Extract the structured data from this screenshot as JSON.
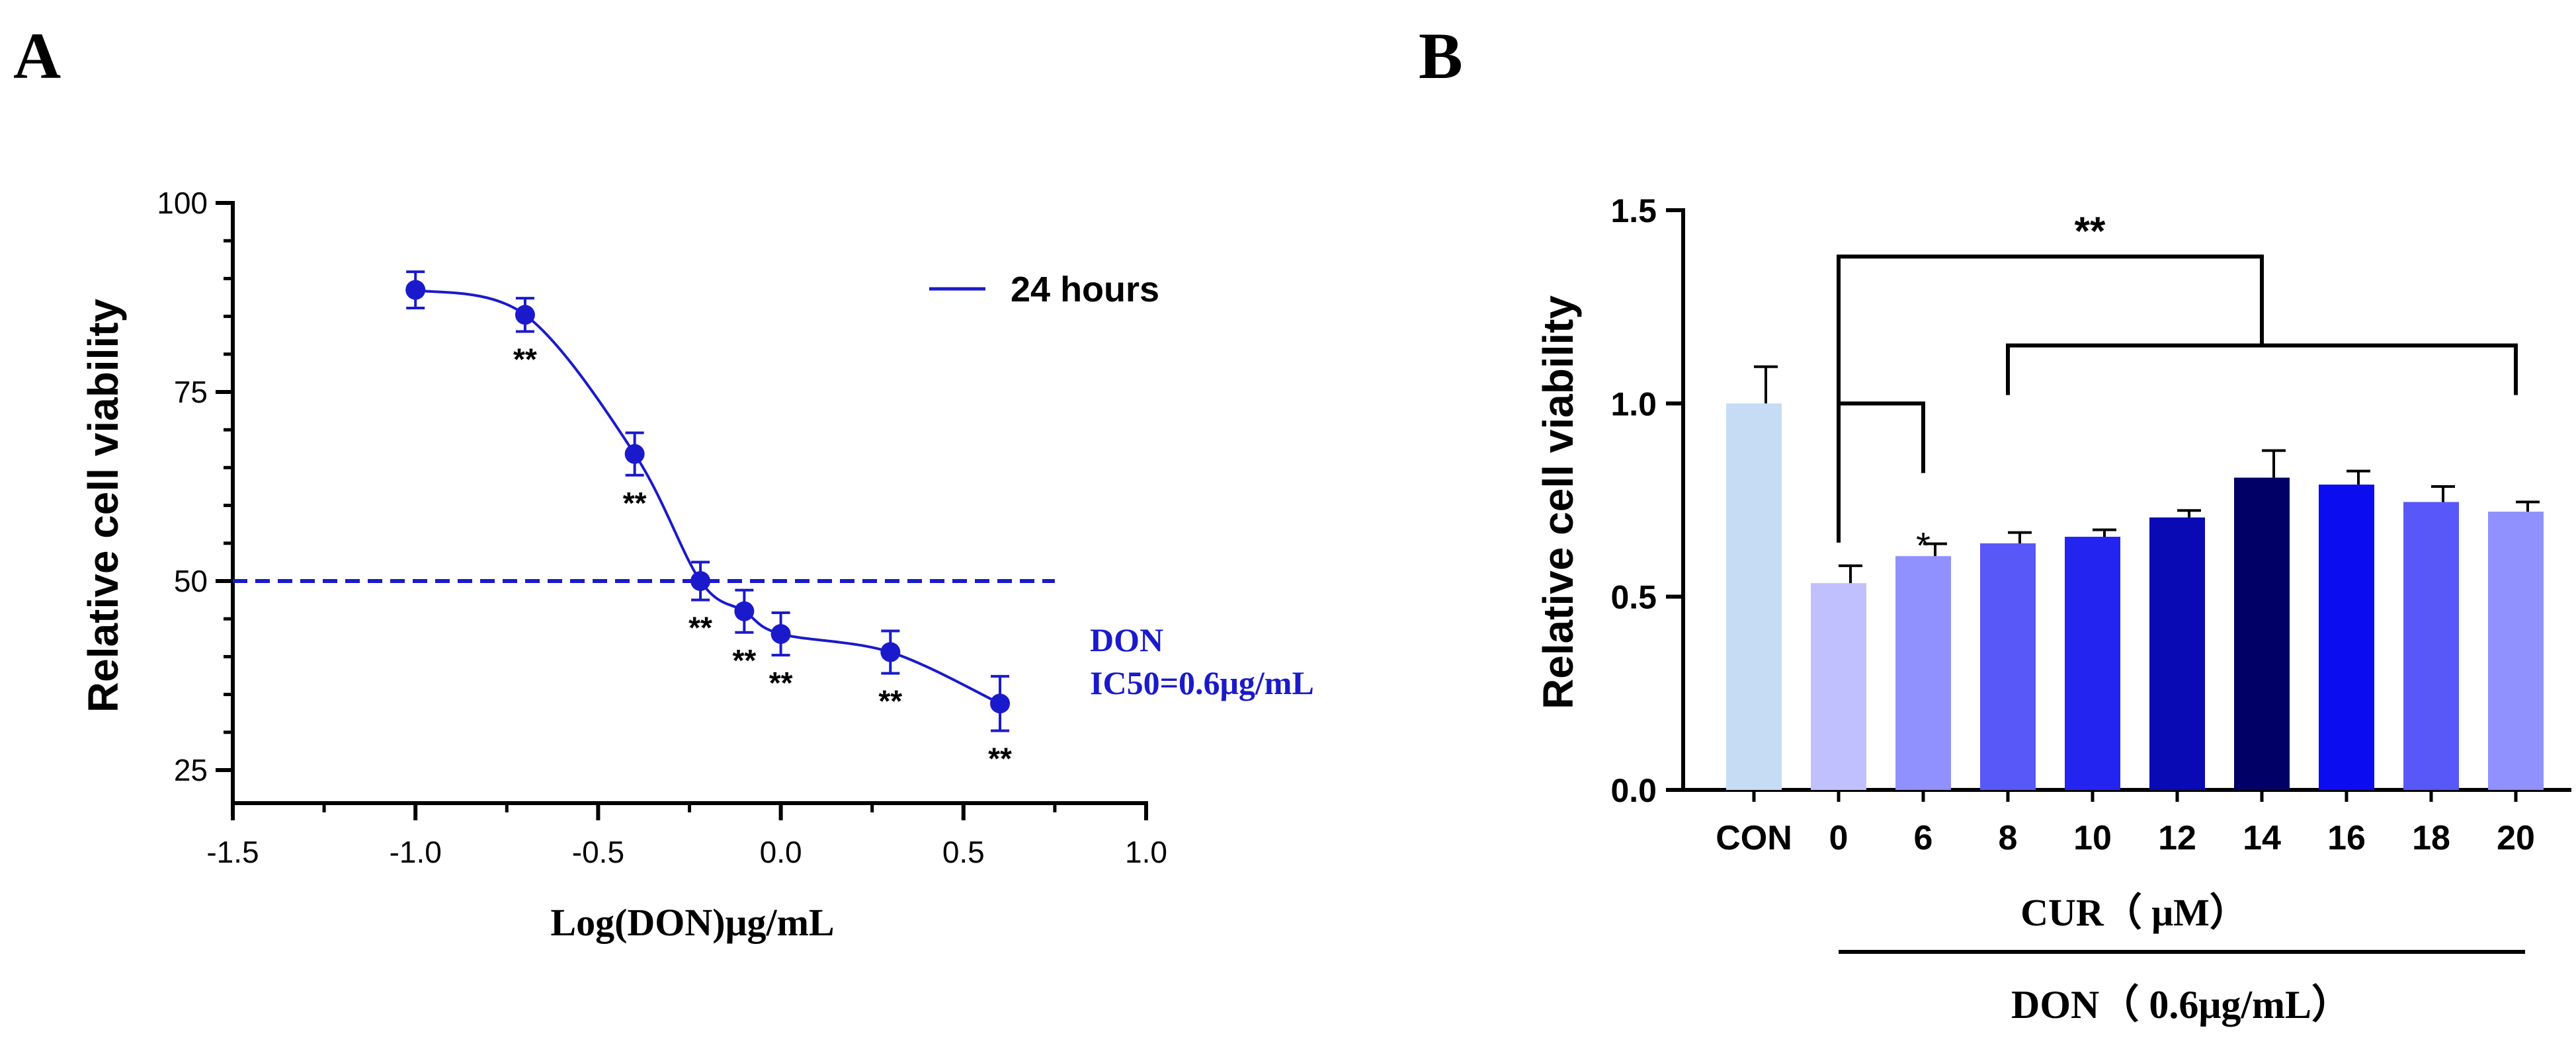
{
  "panels": {
    "a_label": "A",
    "b_label": "B"
  },
  "chart_data": [
    {
      "id": "A",
      "type": "scatter",
      "title": "",
      "xlabel": "Log(DON)μg/mL",
      "ylabel": "Relative cell viability",
      "xlim": [
        -1.5,
        1.0
      ],
      "ylim": [
        20,
        100
      ],
      "xticks": [
        -1.5,
        -1.0,
        -0.5,
        0.0,
        0.5,
        1.0
      ],
      "xtick_labels": [
        "-1.5",
        "-1.0",
        "-0.5",
        "0.0",
        "0.5",
        "1.0"
      ],
      "yticks": [
        25,
        50,
        75,
        100
      ],
      "ytick_labels": [
        "25",
        "50",
        "75",
        "100"
      ],
      "series": [
        {
          "name": "24 hours",
          "color": "#1a1acc",
          "x": [
            -1.0,
            -0.7,
            -0.4,
            -0.22,
            -0.1,
            0.0,
            0.3,
            0.6
          ],
          "y": [
            88.5,
            85.2,
            66.8,
            50.0,
            46.0,
            43.0,
            40.6,
            33.8
          ],
          "err": [
            2.4,
            2.2,
            2.8,
            2.5,
            2.8,
            2.8,
            2.8,
            3.6
          ],
          "sig": [
            "",
            "**",
            "**",
            "**",
            "**",
            "**",
            "**",
            "**"
          ]
        }
      ],
      "reference_line": {
        "y": 50,
        "style": "dashed",
        "xmax": 0.75
      },
      "legend": {
        "label": "24 hours",
        "position": "top-right"
      },
      "annotation": {
        "line1": "DON",
        "line2": "IC50=0.6μg/mL"
      },
      "colors": {
        "series": "#1a1acc",
        "axis": "#000000"
      }
    },
    {
      "id": "B",
      "type": "bar",
      "title": "",
      "xlabel": "",
      "ylabel": "Relative cell viability",
      "ylim": [
        0,
        1.5
      ],
      "yticks": [
        0.0,
        0.5,
        1.0,
        1.5
      ],
      "ytick_labels": [
        "0.0",
        "0.5",
        "1.0",
        "1.5"
      ],
      "categories": [
        "CON",
        "0",
        "6",
        "8",
        "10",
        "12",
        "14",
        "16",
        "18",
        "20"
      ],
      "values": [
        1.0,
        0.535,
        0.605,
        0.638,
        0.655,
        0.705,
        0.808,
        0.79,
        0.745,
        0.72
      ],
      "errors": [
        0.095,
        0.045,
        0.032,
        0.028,
        0.018,
        0.018,
        0.07,
        0.035,
        0.04,
        0.025
      ],
      "colors": [
        "#c6dcf5",
        "#c0c0ff",
        "#9090ff",
        "#5858f8",
        "#2424f0",
        "#0a0ab5",
        "#000066",
        "#0c0cf0",
        "#5858f8",
        "#9090ff"
      ],
      "significance": [
        {
          "label": "*",
          "from": "0",
          "to": "6"
        },
        {
          "label": "",
          "from": "8",
          "to": "20"
        },
        {
          "label": "**",
          "from": "0",
          "to": "8–20"
        }
      ],
      "group_labels": {
        "cur": "CUR（ μM）",
        "don": "DON（ 0.6μg/mL）"
      }
    }
  ]
}
